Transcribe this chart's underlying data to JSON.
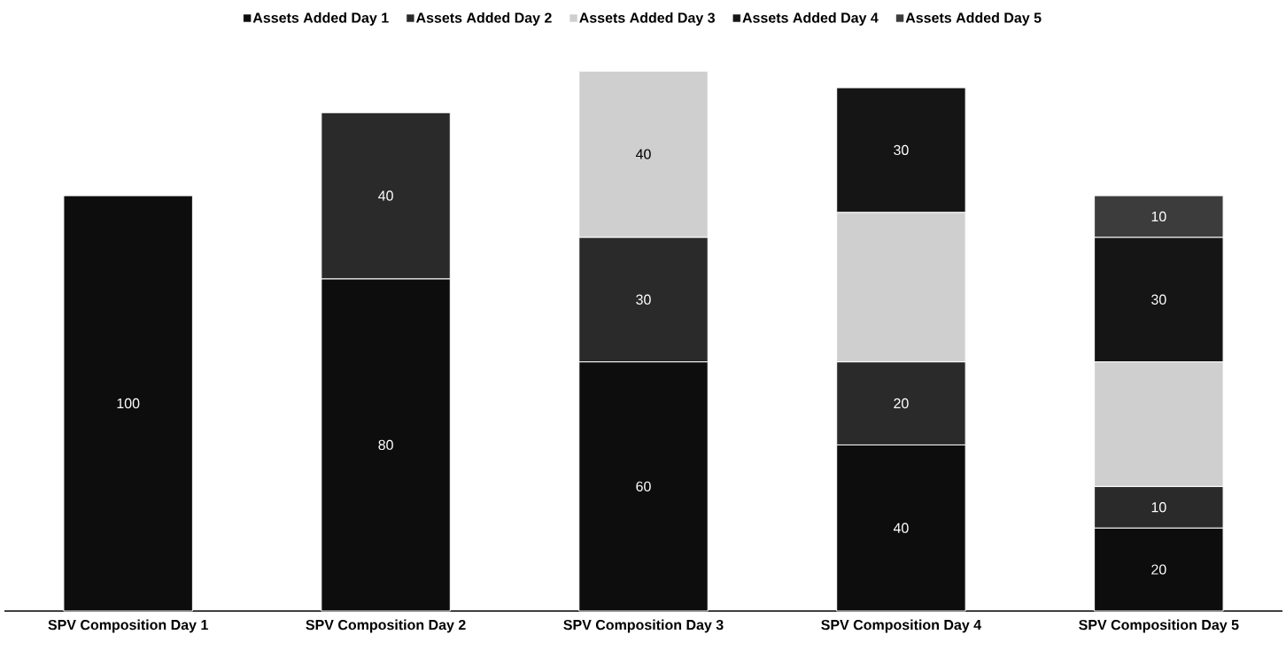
{
  "chart_data": {
    "type": "bar",
    "stacked": true,
    "legend": "top",
    "categories": [
      "SPV Composition Day 1",
      "SPV Composition Day 2",
      "SPV Composition Day 3",
      "SPV Composition Day 4",
      "SPV Composition Day 5"
    ],
    "series": [
      {
        "name": "Assets Added Day 1",
        "color": "#0d0d0d",
        "values": [
          100,
          80,
          60,
          40,
          20
        ],
        "value_labels": [
          "100",
          "80",
          "60",
          "40",
          "20"
        ]
      },
      {
        "name": "Assets Added Day 2",
        "color": "#2a2a2a",
        "values": [
          null,
          40,
          30,
          20,
          10
        ],
        "value_labels": [
          null,
          "40",
          "30",
          "20",
          "10"
        ]
      },
      {
        "name": "Assets Added Day 3",
        "color": "#cfcfcf",
        "values": [
          null,
          null,
          40,
          36,
          30
        ],
        "value_labels": [
          null,
          null,
          "40",
          null,
          null
        ]
      },
      {
        "name": "Assets Added Day 4",
        "color": "#151515",
        "values": [
          null,
          null,
          null,
          30,
          30
        ],
        "value_labels": [
          null,
          null,
          null,
          "30",
          "30"
        ]
      },
      {
        "name": "Assets Added Day 5",
        "color": "#3c3c3c",
        "values": [
          null,
          null,
          null,
          null,
          10
        ],
        "value_labels": [
          null,
          null,
          null,
          null,
          "10"
        ]
      }
    ]
  }
}
